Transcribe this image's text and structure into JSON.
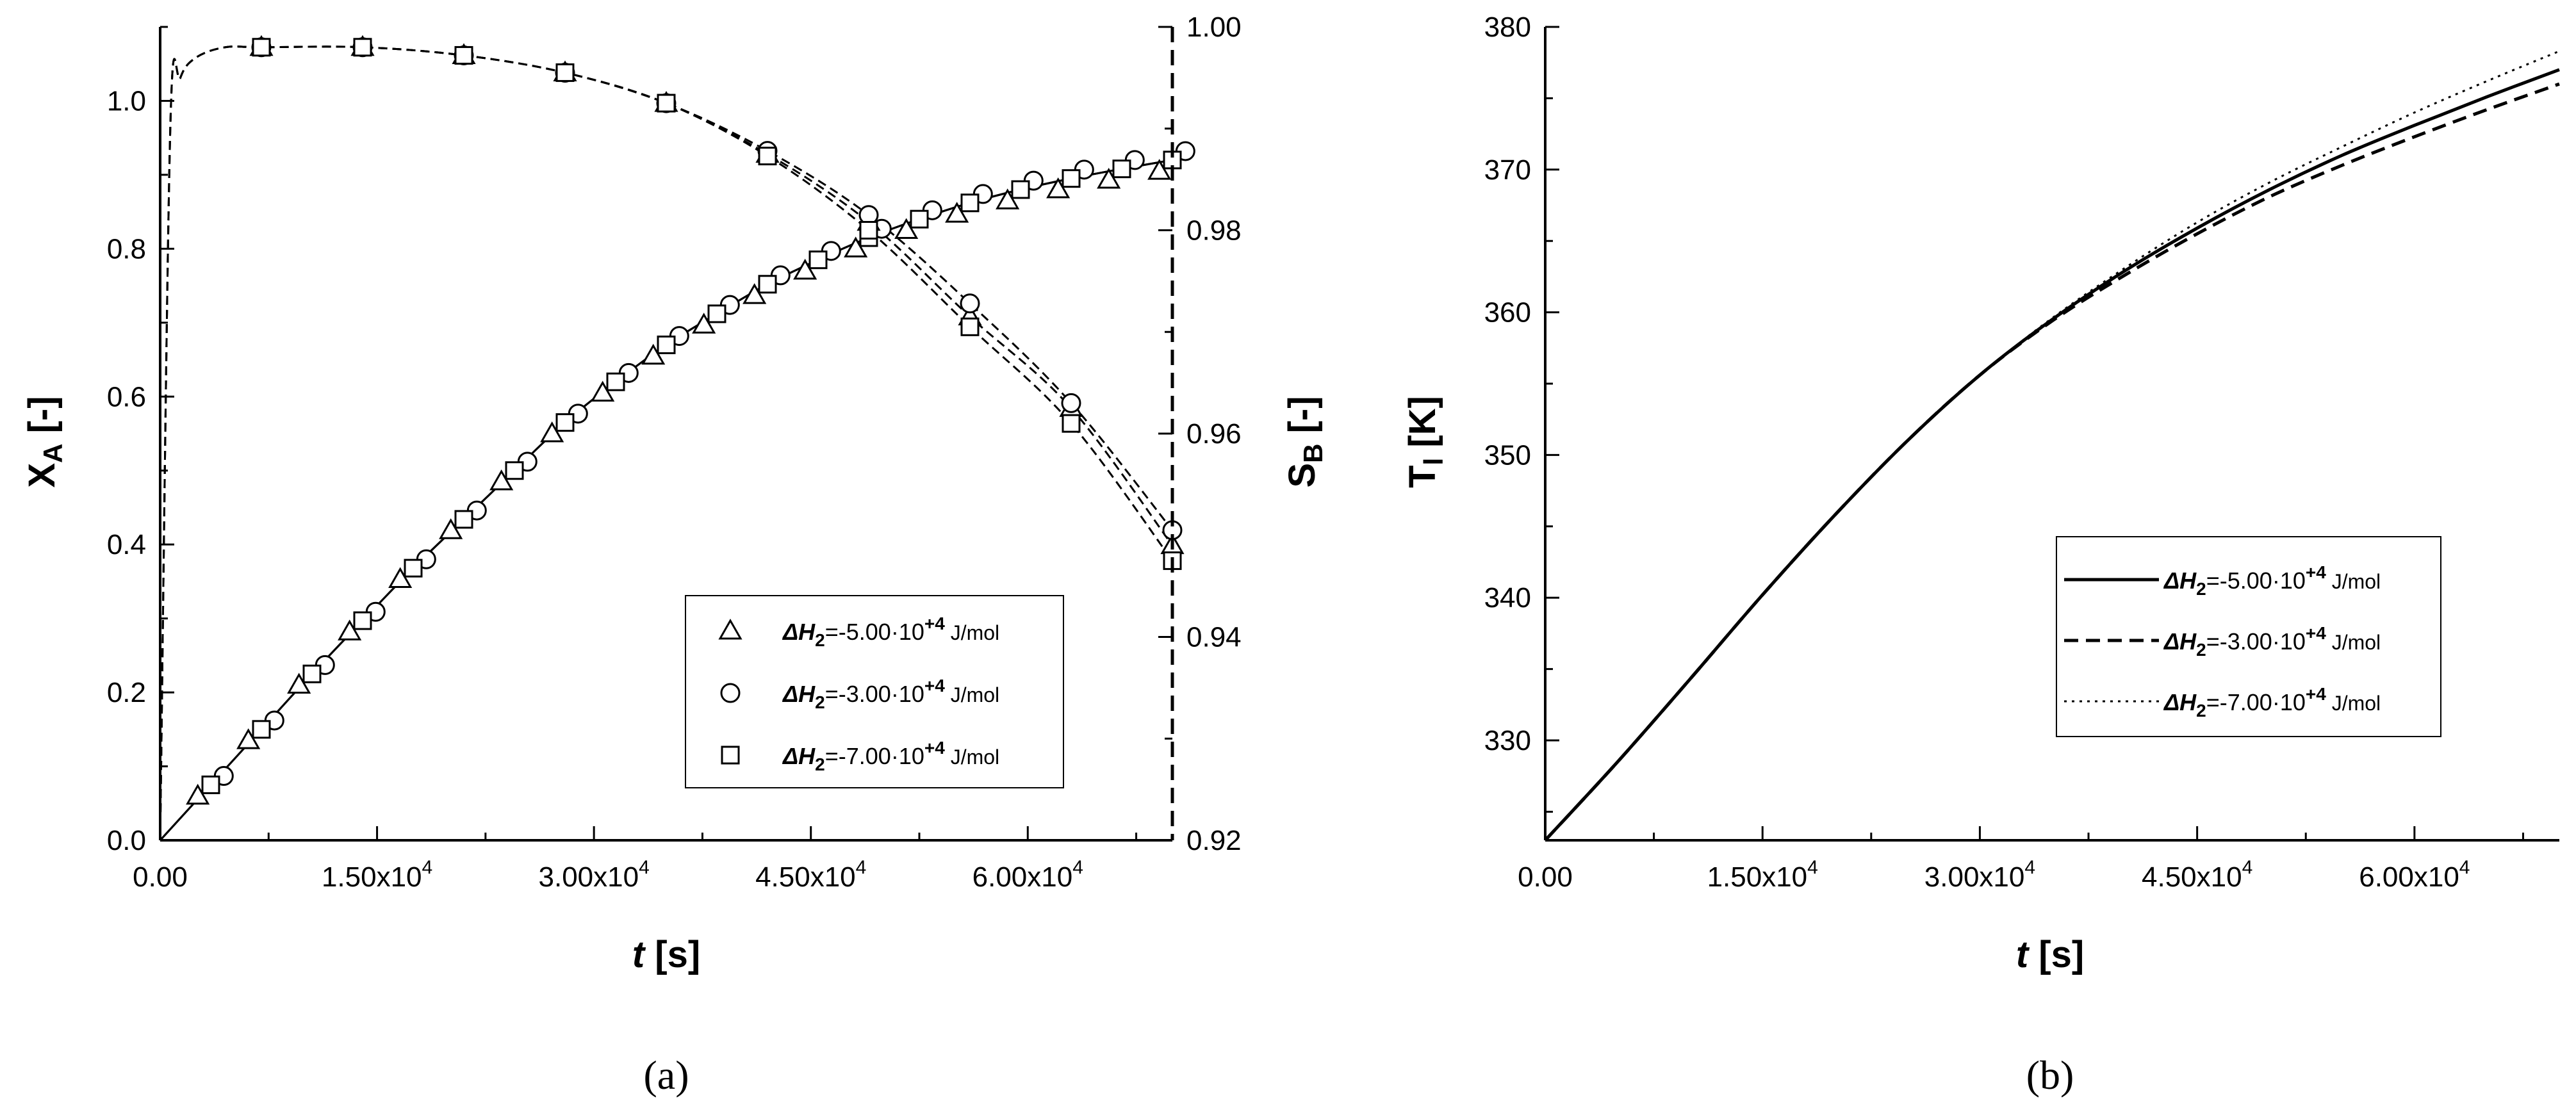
{
  "chart_data": [
    {
      "type": "line",
      "panel_label": "(a)",
      "xlabel": "t [s]",
      "ylabel_left": "X_A [-]",
      "ylabel_right": "S_B [-]",
      "xlim": [
        0,
        70000
      ],
      "ylim_left": [
        0,
        1.1
      ],
      "ylim_right": [
        0.92,
        1.0
      ],
      "x_ticks": [
        0,
        15000,
        30000,
        45000,
        60000
      ],
      "x_tick_labels": [
        "0.00",
        "1.50x10^4",
        "3.00x10^4",
        "4.50x10^4",
        "6.00x10^4"
      ],
      "y_ticks_left": [
        "0.0",
        "0.2",
        "0.4",
        "0.6",
        "0.8",
        "1.0"
      ],
      "y_ticks_right": [
        "0.92",
        "0.94",
        "0.96",
        "0.98",
        "1.00"
      ],
      "legend_position": "lower-right",
      "legend": [
        {
          "marker": "triangle",
          "label": "ΔH2=-5.00·10+4 J/mol"
        },
        {
          "marker": "circle",
          "label": "ΔH2=-3.00·10+4 J/mol"
        },
        {
          "marker": "square",
          "label": "ΔH2=-7.00·10+4 J/mol"
        }
      ],
      "conversion_XA": {
        "axis": "left",
        "x": [
          0,
          3500,
          7000,
          10500,
          14000,
          17500,
          21000,
          24500,
          28000,
          31500,
          35000,
          38500,
          42000,
          45500,
          49000,
          52500,
          56000,
          59500,
          63000,
          66500,
          70000
        ],
        "series": [
          {
            "name": "ΔH2=-5.00·10+4 J/mol",
            "marker": "triangle",
            "values": [
              0.0,
              0.075,
              0.15,
              0.225,
              0.297,
              0.368,
              0.434,
              0.5,
              0.565,
              0.62,
              0.67,
              0.712,
              0.752,
              0.785,
              0.815,
              0.84,
              0.862,
              0.88,
              0.895,
              0.908,
              0.92
            ]
          },
          {
            "name": "ΔH2=-3.00·10+4 J/mol",
            "marker": "circle",
            "values": [
              0.0,
              0.075,
              0.15,
              0.225,
              0.297,
              0.368,
              0.434,
              0.5,
              0.565,
              0.62,
              0.67,
              0.712,
              0.752,
              0.785,
              0.815,
              0.84,
              0.862,
              0.88,
              0.895,
              0.908,
              0.92
            ]
          },
          {
            "name": "ΔH2=-7.00·10+4 J/mol",
            "marker": "square",
            "values": [
              0.0,
              0.075,
              0.15,
              0.225,
              0.297,
              0.368,
              0.434,
              0.5,
              0.565,
              0.62,
              0.67,
              0.712,
              0.752,
              0.785,
              0.815,
              0.84,
              0.862,
              0.88,
              0.895,
              0.908,
              0.92
            ]
          }
        ]
      },
      "selectivity_SB": {
        "axis": "right",
        "x": [
          0,
          700,
          1400,
          2500,
          4500,
          7000,
          14000,
          21000,
          28000,
          35000,
          42000,
          49000,
          56000,
          63000,
          70000
        ],
        "series": [
          {
            "name": "ΔH2=-5.00·10+4 J/mol",
            "marker": "triangle",
            "values": [
              0.92,
              0.99,
              0.995,
              0.997,
              0.998,
              0.998,
              0.998,
              0.9972,
              0.9955,
              0.9925,
              0.9875,
              0.9808,
              0.9715,
              0.9625,
              0.949
            ]
          },
          {
            "name": "ΔH2=-3.00·10+4 J/mol",
            "marker": "circle",
            "values": [
              0.92,
              0.99,
              0.995,
              0.997,
              0.998,
              0.998,
              0.998,
              0.9972,
              0.9955,
              0.9925,
              0.9878,
              0.9815,
              0.9728,
              0.963,
              0.9505
            ]
          },
          {
            "name": "ΔH2=-7.00·10+4 J/mol",
            "marker": "square",
            "values": [
              0.92,
              0.99,
              0.995,
              0.997,
              0.998,
              0.998,
              0.998,
              0.9972,
              0.9955,
              0.9925,
              0.9873,
              0.98,
              0.9705,
              0.961,
              0.9475
            ]
          }
        ]
      }
    },
    {
      "type": "line",
      "panel_label": "(b)",
      "xlabel": "t [s]",
      "ylabel": "T_l [K]",
      "xlim": [
        0,
        70000
      ],
      "ylim": [
        323,
        380
      ],
      "x_ticks": [
        0,
        15000,
        30000,
        45000,
        60000
      ],
      "x_tick_labels": [
        "0.00",
        "1.50x10^4",
        "3.00x10^4",
        "4.50x10^4",
        "6.00x10^4"
      ],
      "y_ticks": [
        "330",
        "340",
        "350",
        "360",
        "370",
        "380"
      ],
      "legend_position": "center-right",
      "x": [
        0,
        5000,
        10000,
        15000,
        20000,
        25000,
        30000,
        35000,
        40000,
        45000,
        50000,
        55000,
        60000,
        65000,
        70000
      ],
      "series": [
        {
          "name": "ΔH2=-5.00·10+4 J/mol",
          "line_style": "solid",
          "values": [
            323.0,
            328.5,
            334.3,
            340.2,
            345.8,
            351.0,
            355.6,
            359.5,
            362.9,
            365.9,
            368.6,
            371.0,
            373.1,
            375.1,
            377.0
          ]
        },
        {
          "name": "ΔH2=-3.00·10+4 J/mol",
          "line_style": "dashed",
          "values": [
            323.0,
            328.5,
            334.3,
            340.2,
            345.8,
            351.0,
            355.6,
            359.4,
            362.6,
            365.5,
            368.1,
            370.3,
            372.3,
            374.2,
            376.0
          ]
        },
        {
          "name": "ΔH2=-7.00·10+4 J/mol",
          "line_style": "dotted",
          "values": [
            323.0,
            328.5,
            334.3,
            340.2,
            345.8,
            351.0,
            355.6,
            359.6,
            363.1,
            366.3,
            369.1,
            371.6,
            374.0,
            376.2,
            378.3
          ]
        }
      ]
    }
  ]
}
